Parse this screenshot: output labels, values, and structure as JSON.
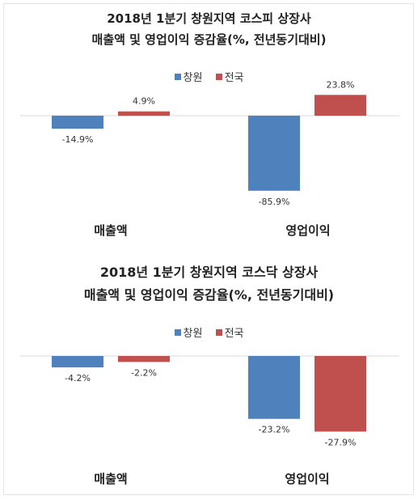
{
  "chart_data": [
    {
      "type": "bar",
      "title": "2018년  1분기 창원지역  코스피 상장사",
      "subtitle": "매출액 및 영업이익 증감율(%, 전년동기대비)",
      "categories": [
        "매출액",
        "영업이익"
      ],
      "series": [
        {
          "name": "창원",
          "values": [
            -14.9,
            -85.9
          ],
          "labels": [
            "-14.9%",
            "-85.9%"
          ],
          "color": "#4f81bd"
        },
        {
          "name": "전국",
          "values": [
            4.9,
            23.8
          ],
          "labels": [
            "4.9%",
            "23.8%"
          ],
          "color": "#c0504d"
        }
      ],
      "legend": "top-center",
      "grid": false
    },
    {
      "type": "bar",
      "title": "2018년 1분기 창원지역  코스닥 상장사",
      "subtitle": "매출액 및 영업이익 증감율(%, 전년동기대비)",
      "categories": [
        "매출액",
        "영업이익"
      ],
      "series": [
        {
          "name": "창원",
          "values": [
            -4.2,
            -23.2
          ],
          "labels": [
            "-4.2%",
            "-23.2%"
          ],
          "color": "#4f81bd"
        },
        {
          "name": "전국",
          "values": [
            -2.2,
            -27.9
          ],
          "labels": [
            "-2.2%",
            "-27.9%"
          ],
          "color": "#c0504d"
        }
      ],
      "legend": "top-center",
      "grid": false
    }
  ]
}
